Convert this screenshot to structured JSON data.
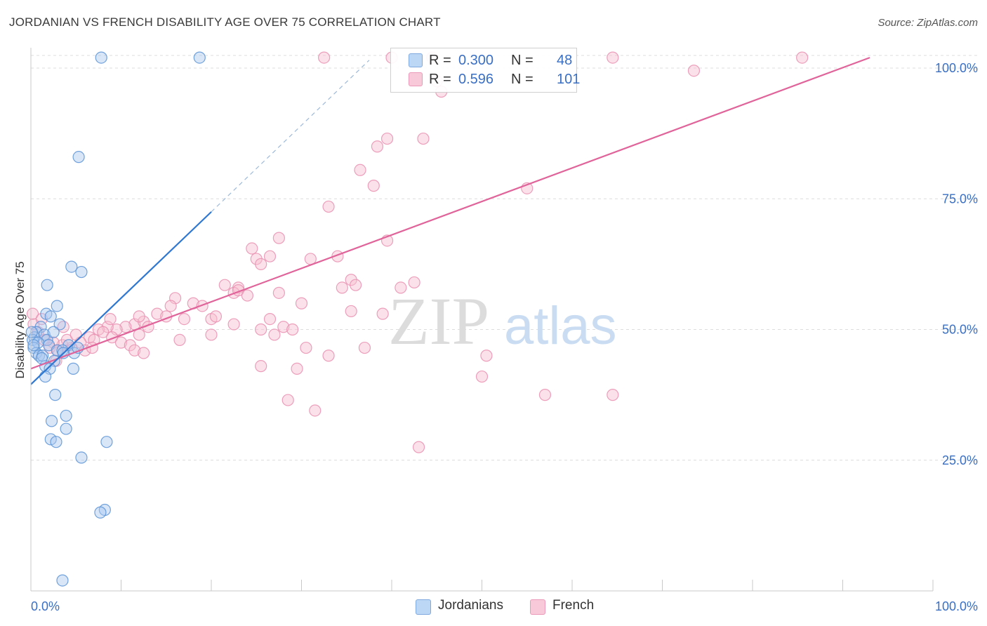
{
  "title": "JORDANIAN VS FRENCH DISABILITY AGE OVER 75 CORRELATION CHART",
  "source": "Source: ZipAtlas.com",
  "watermark": {
    "zip": "ZIP",
    "atlas": "atlas"
  },
  "legend": {
    "jordanians": {
      "r_label": "R =",
      "r_value": "0.300",
      "n_label": "N =",
      "n_value": "48"
    },
    "french": {
      "r_label": "R =",
      "r_value": "0.596",
      "n_label": "N =",
      "n_value": "101"
    }
  },
  "bottom_legend": {
    "jordanians": "Jordanians",
    "french": "French"
  },
  "colors": {
    "jordanians_fill": "#a8c8f0",
    "jordanians_stroke": "#5b93d6",
    "jordanians_line": "#2f77d0",
    "french_fill": "#f6bfd1",
    "french_stroke": "#e98fb0",
    "french_line": "#e0649a",
    "axis_label": "#3a6fc4",
    "grid": "#dcdcdc"
  },
  "chart_data": {
    "type": "scatter",
    "title": "JORDANIAN VS FRENCH DISABILITY AGE OVER 75 CORRELATION CHART",
    "xlabel": "",
    "ylabel": "Disability Age Over 75",
    "xlim": [
      0,
      100
    ],
    "ylim": [
      0,
      104
    ],
    "x_tick_labels": {
      "left": "0.0%",
      "right": "100.0%"
    },
    "y_ticks": [
      25,
      50,
      75,
      100
    ],
    "y_tick_labels": [
      "25.0%",
      "50.0%",
      "75.0%",
      "100.0%"
    ],
    "grid": true,
    "legend_position": "top-center",
    "series": [
      {
        "name": "Jordanians",
        "R": 0.3,
        "N": 48,
        "trend": {
          "x": [
            0,
            20
          ],
          "y": [
            39.5,
            72.5
          ],
          "dashed_extension": {
            "x": [
              20,
              37.5
            ],
            "y": [
              72.5,
              101.5
            ]
          }
        },
        "points": [
          [
            7.8,
            102
          ],
          [
            18.7,
            102
          ],
          [
            5.3,
            83
          ],
          [
            4.5,
            62
          ],
          [
            5.6,
            61
          ],
          [
            1.8,
            58.5
          ],
          [
            2.9,
            54.5
          ],
          [
            1.7,
            53
          ],
          [
            2.2,
            52.5
          ],
          [
            3.2,
            51
          ],
          [
            1.1,
            50.5
          ],
          [
            0.6,
            49.5
          ],
          [
            0.4,
            48.5
          ],
          [
            1.5,
            49
          ],
          [
            1.8,
            48
          ],
          [
            0.2,
            48
          ],
          [
            0.8,
            47.5
          ],
          [
            2.0,
            47
          ],
          [
            4.2,
            47
          ],
          [
            0.3,
            46.5
          ],
          [
            2.9,
            46
          ],
          [
            3.5,
            46
          ],
          [
            0.6,
            45.5
          ],
          [
            0.9,
            45
          ],
          [
            1.3,
            45
          ],
          [
            4.8,
            45.5
          ],
          [
            5.2,
            46.5
          ],
          [
            2.6,
            44
          ],
          [
            1.6,
            43
          ],
          [
            2.1,
            42.5
          ],
          [
            4.7,
            42.5
          ],
          [
            1.6,
            41
          ],
          [
            2.7,
            37.5
          ],
          [
            3.9,
            33.5
          ],
          [
            2.3,
            32.5
          ],
          [
            3.9,
            31
          ],
          [
            2.2,
            29
          ],
          [
            2.8,
            28.5
          ],
          [
            8.4,
            28.5
          ],
          [
            5.6,
            25.5
          ],
          [
            8.2,
            15.5
          ],
          [
            7.7,
            15
          ],
          [
            3.5,
            2
          ],
          [
            0.3,
            47
          ],
          [
            1.2,
            44.5
          ],
          [
            3.6,
            45.5
          ],
          [
            0.1,
            49.5
          ],
          [
            2.5,
            49.5
          ]
        ]
      },
      {
        "name": "French",
        "R": 0.596,
        "N": 101,
        "trend": {
          "x": [
            0,
            93
          ],
          "y": [
            42.5,
            102
          ]
        },
        "points": [
          [
            32.5,
            102
          ],
          [
            40.0,
            102
          ],
          [
            44.5,
            102
          ],
          [
            64.5,
            102
          ],
          [
            85.5,
            102
          ],
          [
            73.5,
            99.5
          ],
          [
            45.0,
            97.5
          ],
          [
            45.5,
            95.5
          ],
          [
            39.5,
            86.5
          ],
          [
            43.5,
            86.5
          ],
          [
            38.4,
            85
          ],
          [
            36.5,
            80.5
          ],
          [
            38.0,
            77.5
          ],
          [
            55.0,
            77
          ],
          [
            33.0,
            73.5
          ],
          [
            27.5,
            67.5
          ],
          [
            24.5,
            65.5
          ],
          [
            39.5,
            67
          ],
          [
            26.5,
            64
          ],
          [
            34.0,
            64
          ],
          [
            25.0,
            63.5
          ],
          [
            31.0,
            63.5
          ],
          [
            25.5,
            62.5
          ],
          [
            35.5,
            59.5
          ],
          [
            21.5,
            58.5
          ],
          [
            23.0,
            58
          ],
          [
            27.5,
            57
          ],
          [
            34.5,
            58
          ],
          [
            36.0,
            58.5
          ],
          [
            41.0,
            58
          ],
          [
            42.5,
            59
          ],
          [
            16.0,
            56
          ],
          [
            22.5,
            57
          ],
          [
            23.0,
            57.5
          ],
          [
            24.0,
            56.5
          ],
          [
            30.0,
            55
          ],
          [
            18.0,
            55
          ],
          [
            19.0,
            54.5
          ],
          [
            15.5,
            54.5
          ],
          [
            14.0,
            53
          ],
          [
            15.0,
            52.5
          ],
          [
            17.0,
            52
          ],
          [
            20.0,
            52
          ],
          [
            20.5,
            52.5
          ],
          [
            11.5,
            51
          ],
          [
            12.5,
            51.5
          ],
          [
            13.0,
            50.5
          ],
          [
            10.5,
            50.5
          ],
          [
            9.5,
            50
          ],
          [
            8.5,
            50.5
          ],
          [
            7.5,
            50
          ],
          [
            6.5,
            48.5
          ],
          [
            7.0,
            48
          ],
          [
            8.0,
            49.5
          ],
          [
            9.0,
            48.5
          ],
          [
            10.0,
            47.5
          ],
          [
            11.0,
            47
          ],
          [
            12.0,
            49
          ],
          [
            5.5,
            47.5
          ],
          [
            4.5,
            46.5
          ],
          [
            3.5,
            47
          ],
          [
            2.5,
            47.5
          ],
          [
            1.5,
            48
          ],
          [
            0.8,
            49.5
          ],
          [
            0.3,
            51
          ],
          [
            0.2,
            53
          ],
          [
            1.2,
            52
          ],
          [
            2.1,
            46.5
          ],
          [
            3.0,
            46
          ],
          [
            4.0,
            48
          ],
          [
            5.0,
            49
          ],
          [
            6.0,
            46
          ],
          [
            11.5,
            46
          ],
          [
            12.5,
            45.5
          ],
          [
            25.5,
            50
          ],
          [
            27.0,
            49
          ],
          [
            28.0,
            50.5
          ],
          [
            29.0,
            50
          ],
          [
            20.0,
            49
          ],
          [
            22.5,
            51
          ],
          [
            30.5,
            46.5
          ],
          [
            37.0,
            46.5
          ],
          [
            33.0,
            45
          ],
          [
            25.5,
            43
          ],
          [
            29.5,
            42.5
          ],
          [
            50.5,
            45
          ],
          [
            50.0,
            41
          ],
          [
            57.0,
            37.5
          ],
          [
            64.5,
            37.5
          ],
          [
            28.5,
            36.5
          ],
          [
            31.5,
            34.5
          ],
          [
            43.0,
            27.5
          ],
          [
            12.0,
            52.5
          ],
          [
            2.8,
            44
          ],
          [
            6.8,
            46.5
          ],
          [
            16.5,
            48
          ],
          [
            8.8,
            52
          ],
          [
            35.5,
            53.5
          ],
          [
            39.0,
            53
          ],
          [
            26.5,
            52
          ],
          [
            3.6,
            50.5
          ]
        ]
      }
    ]
  }
}
